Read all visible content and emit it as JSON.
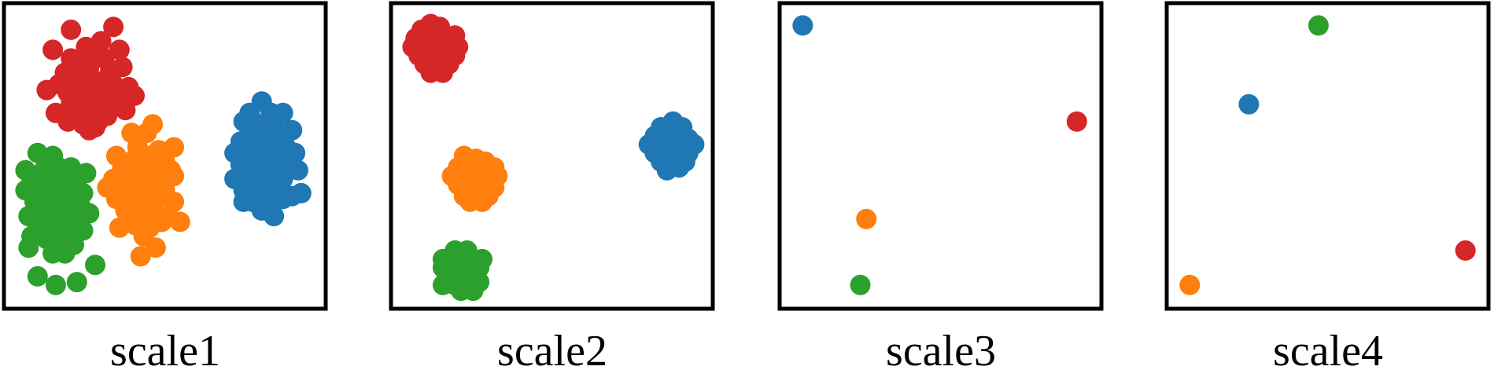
{
  "colors": {
    "blue": "#1f77b4",
    "orange": "#ff7f0e",
    "green": "#2ca02c",
    "red": "#d62728",
    "frame": "#000000"
  },
  "chart_data": [
    {
      "type": "scatter",
      "label": "scale1",
      "xlim": [
        0,
        1
      ],
      "ylim": [
        0,
        1
      ],
      "grid": false,
      "ticks": false,
      "series": [
        {
          "color": "red",
          "points": [
            [
              0.19,
              0.94
            ],
            [
              0.33,
              0.95
            ],
            [
              0.13,
              0.87
            ],
            [
              0.24,
              0.88
            ],
            [
              0.29,
              0.9
            ],
            [
              0.27,
              0.87
            ],
            [
              0.35,
              0.87
            ],
            [
              0.19,
              0.84
            ],
            [
              0.23,
              0.83
            ],
            [
              0.3,
              0.84
            ],
            [
              0.36,
              0.81
            ],
            [
              0.17,
              0.79
            ],
            [
              0.21,
              0.8
            ],
            [
              0.25,
              0.81
            ],
            [
              0.32,
              0.8
            ],
            [
              0.15,
              0.75
            ],
            [
              0.2,
              0.76
            ],
            [
              0.24,
              0.77
            ],
            [
              0.28,
              0.76
            ],
            [
              0.33,
              0.75
            ],
            [
              0.38,
              0.74
            ],
            [
              0.11,
              0.73
            ],
            [
              0.18,
              0.72
            ],
            [
              0.22,
              0.73
            ],
            [
              0.27,
              0.72
            ],
            [
              0.31,
              0.71
            ],
            [
              0.35,
              0.71
            ],
            [
              0.19,
              0.68
            ],
            [
              0.23,
              0.69
            ],
            [
              0.29,
              0.68
            ],
            [
              0.33,
              0.67
            ],
            [
              0.37,
              0.66
            ],
            [
              0.4,
              0.71
            ],
            [
              0.14,
              0.65
            ],
            [
              0.21,
              0.65
            ],
            [
              0.26,
              0.64
            ],
            [
              0.31,
              0.64
            ],
            [
              0.28,
              0.62
            ],
            [
              0.23,
              0.61
            ],
            [
              0.18,
              0.62
            ],
            [
              0.25,
              0.59
            ],
            [
              0.27,
              0.6
            ]
          ]
        },
        {
          "color": "blue",
          "points": [
            [
              0.82,
              0.69
            ],
            [
              0.78,
              0.65
            ],
            [
              0.85,
              0.65
            ],
            [
              0.89,
              0.65
            ],
            [
              0.76,
              0.62
            ],
            [
              0.81,
              0.61
            ],
            [
              0.86,
              0.61
            ],
            [
              0.92,
              0.59
            ],
            [
              0.78,
              0.58
            ],
            [
              0.83,
              0.58
            ],
            [
              0.88,
              0.57
            ],
            [
              0.75,
              0.55
            ],
            [
              0.8,
              0.54
            ],
            [
              0.85,
              0.54
            ],
            [
              0.9,
              0.53
            ],
            [
              0.73,
              0.51
            ],
            [
              0.78,
              0.5
            ],
            [
              0.83,
              0.5
            ],
            [
              0.88,
              0.5
            ],
            [
              0.93,
              0.51
            ],
            [
              0.75,
              0.47
            ],
            [
              0.8,
              0.46
            ],
            [
              0.85,
              0.46
            ],
            [
              0.9,
              0.47
            ],
            [
              0.94,
              0.45
            ],
            [
              0.73,
              0.42
            ],
            [
              0.78,
              0.42
            ],
            [
              0.84,
              0.42
            ],
            [
              0.89,
              0.42
            ],
            [
              0.76,
              0.38
            ],
            [
              0.81,
              0.37
            ],
            [
              0.87,
              0.38
            ],
            [
              0.92,
              0.36
            ],
            [
              0.95,
              0.37
            ],
            [
              0.79,
              0.34
            ],
            [
              0.84,
              0.34
            ],
            [
              0.89,
              0.35
            ],
            [
              0.76,
              0.34
            ],
            [
              0.82,
              0.31
            ],
            [
              0.86,
              0.29
            ]
          ]
        },
        {
          "color": "orange",
          "points": [
            [
              0.46,
              0.61
            ],
            [
              0.39,
              0.58
            ],
            [
              0.44,
              0.58
            ],
            [
              0.41,
              0.53
            ],
            [
              0.48,
              0.52
            ],
            [
              0.53,
              0.53
            ],
            [
              0.34,
              0.5
            ],
            [
              0.4,
              0.49
            ],
            [
              0.45,
              0.5
            ],
            [
              0.5,
              0.48
            ],
            [
              0.36,
              0.46
            ],
            [
              0.42,
              0.46
            ],
            [
              0.47,
              0.46
            ],
            [
              0.52,
              0.45
            ],
            [
              0.53,
              0.43
            ],
            [
              0.33,
              0.42
            ],
            [
              0.38,
              0.42
            ],
            [
              0.43,
              0.43
            ],
            [
              0.48,
              0.42
            ],
            [
              0.31,
              0.39
            ],
            [
              0.36,
              0.39
            ],
            [
              0.41,
              0.39
            ],
            [
              0.46,
              0.39
            ],
            [
              0.5,
              0.38
            ],
            [
              0.34,
              0.35
            ],
            [
              0.39,
              0.35
            ],
            [
              0.44,
              0.35
            ],
            [
              0.49,
              0.36
            ],
            [
              0.53,
              0.34
            ],
            [
              0.37,
              0.31
            ],
            [
              0.42,
              0.31
            ],
            [
              0.47,
              0.3
            ],
            [
              0.51,
              0.29
            ],
            [
              0.55,
              0.27
            ],
            [
              0.35,
              0.25
            ],
            [
              0.4,
              0.26
            ],
            [
              0.45,
              0.25
            ],
            [
              0.49,
              0.27
            ],
            [
              0.43,
              0.22
            ],
            [
              0.47,
              0.18
            ],
            [
              0.42,
              0.15
            ]
          ]
        },
        {
          "color": "green",
          "points": [
            [
              0.08,
              0.51
            ],
            [
              0.13,
              0.5
            ],
            [
              0.04,
              0.45
            ],
            [
              0.1,
              0.45
            ],
            [
              0.15,
              0.46
            ],
            [
              0.19,
              0.46
            ],
            [
              0.24,
              0.44
            ],
            [
              0.06,
              0.42
            ],
            [
              0.11,
              0.42
            ],
            [
              0.16,
              0.41
            ],
            [
              0.21,
              0.42
            ],
            [
              0.04,
              0.38
            ],
            [
              0.09,
              0.38
            ],
            [
              0.14,
              0.38
            ],
            [
              0.19,
              0.38
            ],
            [
              0.23,
              0.37
            ],
            [
              0.07,
              0.34
            ],
            [
              0.12,
              0.34
            ],
            [
              0.17,
              0.34
            ],
            [
              0.22,
              0.33
            ],
            [
              0.25,
              0.3
            ],
            [
              0.05,
              0.29
            ],
            [
              0.1,
              0.29
            ],
            [
              0.15,
              0.29
            ],
            [
              0.2,
              0.29
            ],
            [
              0.08,
              0.25
            ],
            [
              0.13,
              0.25
            ],
            [
              0.18,
              0.25
            ],
            [
              0.23,
              0.24
            ],
            [
              0.06,
              0.22
            ],
            [
              0.11,
              0.21
            ],
            [
              0.16,
              0.21
            ],
            [
              0.2,
              0.19
            ],
            [
              0.05,
              0.18
            ],
            [
              0.13,
              0.16
            ],
            [
              0.17,
              0.16
            ],
            [
              0.27,
              0.12
            ],
            [
              0.08,
              0.08
            ],
            [
              0.14,
              0.05
            ],
            [
              0.21,
              0.06
            ]
          ]
        }
      ]
    },
    {
      "type": "scatter",
      "label": "scale2",
      "xlim": [
        0,
        1
      ],
      "ylim": [
        0,
        1
      ],
      "grid": false,
      "ticks": false,
      "series": [
        {
          "color": "red",
          "points": [
            [
              0.1,
              0.96
            ],
            [
              0.07,
              0.94
            ],
            [
              0.13,
              0.95
            ],
            [
              0.05,
              0.91
            ],
            [
              0.1,
              0.92
            ],
            [
              0.15,
              0.91
            ],
            [
              0.18,
              0.92
            ],
            [
              0.04,
              0.88
            ],
            [
              0.08,
              0.88
            ],
            [
              0.12,
              0.88
            ],
            [
              0.16,
              0.88
            ],
            [
              0.19,
              0.88
            ],
            [
              0.06,
              0.85
            ],
            [
              0.1,
              0.85
            ],
            [
              0.14,
              0.84
            ],
            [
              0.18,
              0.85
            ],
            [
              0.08,
              0.82
            ],
            [
              0.12,
              0.81
            ],
            [
              0.16,
              0.82
            ],
            [
              0.1,
              0.79
            ],
            [
              0.14,
              0.79
            ]
          ]
        },
        {
          "color": "blue",
          "points": [
            [
              0.9,
              0.62
            ],
            [
              0.86,
              0.6
            ],
            [
              0.93,
              0.6
            ],
            [
              0.84,
              0.57
            ],
            [
              0.88,
              0.57
            ],
            [
              0.92,
              0.57
            ],
            [
              0.95,
              0.56
            ],
            [
              0.82,
              0.54
            ],
            [
              0.86,
              0.54
            ],
            [
              0.9,
              0.54
            ],
            [
              0.94,
              0.53
            ],
            [
              0.97,
              0.54
            ],
            [
              0.84,
              0.51
            ],
            [
              0.88,
              0.51
            ],
            [
              0.92,
              0.5
            ],
            [
              0.95,
              0.51
            ],
            [
              0.86,
              0.48
            ],
            [
              0.9,
              0.48
            ],
            [
              0.94,
              0.48
            ],
            [
              0.88,
              0.45
            ],
            [
              0.92,
              0.46
            ]
          ]
        },
        {
          "color": "orange",
          "points": [
            [
              0.21,
              0.5
            ],
            [
              0.25,
              0.49
            ],
            [
              0.28,
              0.48
            ],
            [
              0.19,
              0.46
            ],
            [
              0.23,
              0.46
            ],
            [
              0.27,
              0.46
            ],
            [
              0.31,
              0.46
            ],
            [
              0.17,
              0.43
            ],
            [
              0.21,
              0.43
            ],
            [
              0.25,
              0.43
            ],
            [
              0.29,
              0.42
            ],
            [
              0.32,
              0.43
            ],
            [
              0.19,
              0.4
            ],
            [
              0.23,
              0.39
            ],
            [
              0.27,
              0.39
            ],
            [
              0.31,
              0.39
            ],
            [
              0.21,
              0.36
            ],
            [
              0.25,
              0.36
            ],
            [
              0.29,
              0.36
            ],
            [
              0.23,
              0.34
            ],
            [
              0.27,
              0.34
            ]
          ]
        },
        {
          "color": "green",
          "points": [
            [
              0.18,
              0.17
            ],
            [
              0.22,
              0.17
            ],
            [
              0.16,
              0.14
            ],
            [
              0.2,
              0.14
            ],
            [
              0.24,
              0.14
            ],
            [
              0.27,
              0.14
            ],
            [
              0.14,
              0.11
            ],
            [
              0.18,
              0.11
            ],
            [
              0.22,
              0.11
            ],
            [
              0.26,
              0.11
            ],
            [
              0.16,
              0.08
            ],
            [
              0.2,
              0.08
            ],
            [
              0.24,
              0.08
            ],
            [
              0.14,
              0.05
            ],
            [
              0.18,
              0.05
            ],
            [
              0.22,
              0.05
            ],
            [
              0.26,
              0.06
            ],
            [
              0.2,
              0.03
            ],
            [
              0.24,
              0.03
            ],
            [
              0.14,
              0.14
            ]
          ]
        }
      ]
    },
    {
      "type": "scatter",
      "label": "scale3",
      "xlim": [
        0,
        1
      ],
      "ylim": [
        0,
        1
      ],
      "grid": false,
      "ticks": false,
      "series": [
        {
          "color": "blue",
          "points": [
            [
              0.045,
              0.955
            ]
          ]
        },
        {
          "color": "red",
          "points": [
            [
              0.95,
              0.62
            ]
          ]
        },
        {
          "color": "orange",
          "points": [
            [
              0.255,
              0.28
            ]
          ]
        },
        {
          "color": "green",
          "points": [
            [
              0.235,
              0.05
            ]
          ]
        }
      ]
    },
    {
      "type": "scatter",
      "label": "scale4",
      "xlim": [
        0,
        1
      ],
      "ylim": [
        0,
        1
      ],
      "grid": false,
      "ticks": false,
      "series": [
        {
          "color": "green",
          "points": [
            [
              0.47,
              0.955
            ]
          ]
        },
        {
          "color": "blue",
          "points": [
            [
              0.24,
              0.68
            ]
          ]
        },
        {
          "color": "red",
          "points": [
            [
              0.955,
              0.17
            ]
          ]
        },
        {
          "color": "orange",
          "points": [
            [
              0.045,
              0.05
            ]
          ]
        }
      ]
    }
  ]
}
